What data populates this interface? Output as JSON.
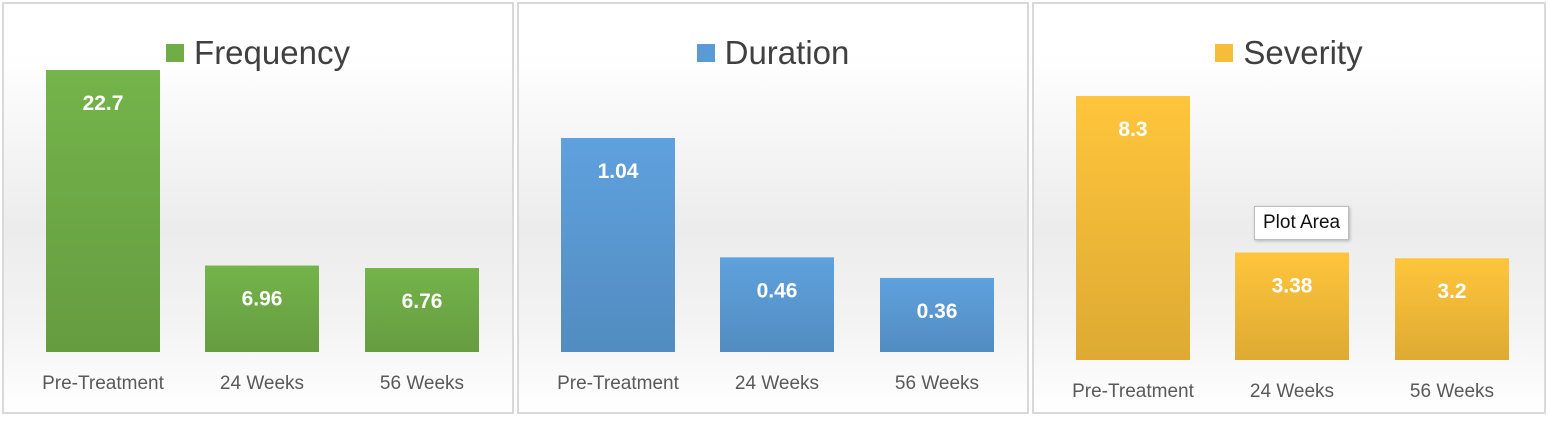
{
  "chart_data": [
    {
      "type": "bar",
      "title": "Frequency",
      "categories": [
        "Pre-Treatment",
        "24 Weeks",
        "56 Weeks"
      ],
      "values": [
        22.7,
        6.96,
        6.76
      ],
      "value_labels": [
        "22.7",
        "6.96",
        "6.76"
      ],
      "color": "#70AD47",
      "grid": false
    },
    {
      "type": "bar",
      "title": "Duration",
      "categories": [
        "Pre-Treatment",
        "24 Weeks",
        "56 Weeks"
      ],
      "values": [
        1.04,
        0.46,
        0.36
      ],
      "value_labels": [
        "1.04",
        "0.46",
        "0.36"
      ],
      "color": "#5B9BD5",
      "grid": false
    },
    {
      "type": "bar",
      "title": "Severity",
      "categories": [
        "Pre-Treatment",
        "24 Weeks",
        "56 Weeks"
      ],
      "values": [
        8.3,
        3.38,
        3.2
      ],
      "value_labels": [
        "8.3",
        "3.38",
        "3.2"
      ],
      "color": "#F5BD39",
      "grid": false
    }
  ],
  "tooltip": {
    "text": "Plot Area"
  }
}
